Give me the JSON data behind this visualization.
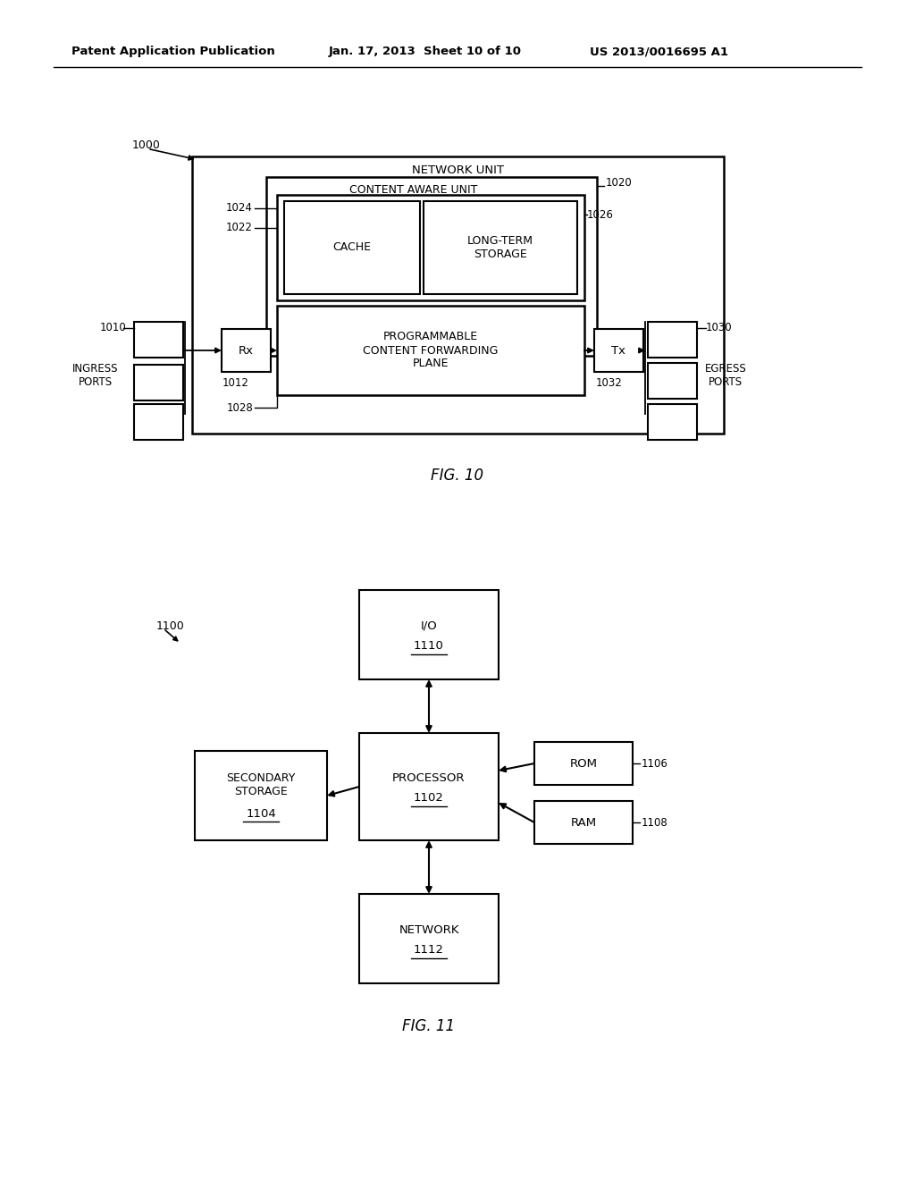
{
  "bg_color": "#ffffff",
  "header_text": "Patent Application Publication",
  "header_date": "Jan. 17, 2013  Sheet 10 of 10",
  "header_patent": "US 2013/0016695 A1",
  "fig10_label": "FIG. 10",
  "fig10_ref_1000": "1000",
  "fig10_network_unit_label": "NETWORK UNIT",
  "fig10_cau_label": "CONTENT AWARE UNIT",
  "fig10_ref_1020": "1020",
  "fig10_cache_label": "CACHE",
  "fig10_lts_label": "LONG-TERM\nSTORAGE",
  "fig10_ref_1024": "1024",
  "fig10_ref_1022": "1022",
  "fig10_ref_1026": "1026",
  "fig10_pcfp_label": "PROGRAMMABLE\nCONTENT FORWARDING\nPLANE",
  "fig10_ref_1028": "1028",
  "fig10_rx_label": "Rx",
  "fig10_ref_1012": "1012",
  "fig10_ref_1010": "1010",
  "fig10_ingress_label": "INGRESS\nPORTS",
  "fig10_tx_label": "Tx",
  "fig10_ref_1032": "1032",
  "fig10_ref_1030": "1030",
  "fig10_egress_label": "EGRESS\nPORTS",
  "fig11_label": "FIG. 11",
  "fig11_ref_1100": "1100",
  "fig11_io_label": "I/O",
  "fig11_io_ref": "1110",
  "fig11_proc_label": "PROCESSOR",
  "fig11_proc_ref": "1102",
  "fig11_sec_label": "SECONDARY\nSTORAGE",
  "fig11_sec_ref": "1104",
  "fig11_rom_label": "ROM",
  "fig11_ref_1106": "1106",
  "fig11_ram_label": "RAM",
  "fig11_ref_1108": "1108",
  "fig11_net_label": "NETWORK",
  "fig11_net_ref": "1112"
}
